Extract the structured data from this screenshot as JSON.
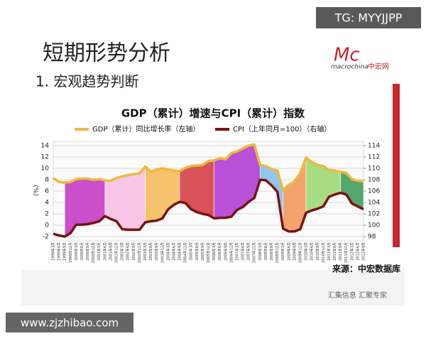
{
  "watermark": "TG: MYYJJPP",
  "slide": {
    "title": "短期形势分析",
    "subtitle": "1. 宏观趋势判断",
    "logo_mark": "Mc",
    "logo_text": "macrochina",
    "logo_cn": "中宏网",
    "footer": "汇集信息 汇聚专家"
  },
  "site": "www.zjzhibao.com",
  "chart_data": {
    "type": "line",
    "title": "GDP（累计）增速与CPI（累计）指数",
    "y_label": "(%)",
    "source": "来源：中宏数据库",
    "categories": [
      "1999年3月",
      "1999年6月",
      "1999年9月",
      "1999年12月",
      "2000年3月",
      "2000年6月",
      "2000年9月",
      "2000年12月",
      "2001年3月",
      "2001年6月",
      "2001年9月",
      "2001年12月",
      "2002年3月",
      "2002年6月",
      "2002年9月",
      "2002年12月",
      "2003年3月",
      "2003年6月",
      "2003年9月",
      "2003年12月",
      "2004年3月",
      "2004年6月",
      "2004年9月",
      "2004年12月",
      "2005年3月",
      "2005年6月",
      "2005年9月",
      "2005年12月",
      "2006年3月",
      "2006年6月",
      "2006年9月",
      "2006年12月",
      "2007年3月",
      "2007年6月",
      "2007年9月",
      "2007年12月",
      "2008年3月",
      "2008年6月",
      "2008年9月",
      "2008年12月",
      "2009年3月",
      "2009年6月",
      "2009年9月",
      "2009年12月",
      "2010年3月",
      "2010年6月",
      "2010年9月",
      "2010年12月",
      "2011年3月",
      "2011年6月",
      "2011年9月",
      "2011年12月",
      "2012年3月",
      "2012年6月",
      "2012年9月"
    ],
    "series": [
      {
        "name": "GDP（累计）同比增长率（左轴）",
        "color": "#efb73e",
        "values": [
          8.3,
          7.6,
          7.5,
          7.6,
          8.1,
          8.2,
          8.2,
          8.0,
          8.1,
          7.9,
          7.8,
          8.3,
          8.6,
          8.8,
          9.0,
          9.1,
          10.3,
          9.4,
          9.8,
          10.0,
          9.8,
          9.6,
          9.5,
          10.1,
          10.4,
          10.5,
          10.6,
          11.3,
          11.4,
          11.8,
          11.6,
          12.7,
          13.0,
          13.5,
          14.0,
          14.2,
          10.6,
          10.4,
          9.9,
          9.6,
          6.2,
          7.1,
          7.7,
          9.2,
          11.9,
          11.1,
          10.6,
          10.4,
          9.7,
          9.6,
          9.4,
          9.2,
          8.1,
          7.8,
          7.7
        ]
      },
      {
        "name": "CPI（上年同月=100）（右轴）",
        "color": "#7a1212",
        "axis": "y2",
        "values": [
          98.5,
          98.2,
          98.0,
          98.6,
          100.1,
          100.1,
          100.2,
          100.4,
          100.7,
          101.6,
          101.1,
          100.7,
          99.3,
          99.2,
          99.2,
          99.2,
          100.5,
          100.7,
          100.8,
          101.2,
          102.8,
          103.6,
          104.1,
          103.9,
          102.8,
          102.3,
          102.0,
          101.8,
          101.2,
          101.3,
          101.3,
          101.5,
          102.7,
          103.2,
          104.1,
          104.8,
          108.0,
          107.9,
          107.0,
          105.9,
          99.4,
          98.9,
          98.9,
          99.3,
          102.2,
          102.6,
          102.9,
          103.3,
          105.0,
          105.4,
          105.7,
          105.4,
          103.8,
          103.3,
          102.8
        ]
      }
    ],
    "ylim": [
      -2,
      14
    ],
    "yticks": [
      -2,
      0,
      2,
      4,
      6,
      8,
      10,
      12,
      14
    ],
    "y2lim": [
      98,
      114
    ],
    "y2ticks": [
      98,
      100,
      102,
      104,
      106,
      108,
      110,
      112,
      114
    ],
    "grid": true,
    "phase_colors": [
      "#c94fcb",
      "#f7c6e6",
      "#f6c36c",
      "#d9525a",
      "#b950d8",
      "#8fc6ec",
      "#f4a36c",
      "#a8dc82",
      "#52a86c"
    ]
  }
}
